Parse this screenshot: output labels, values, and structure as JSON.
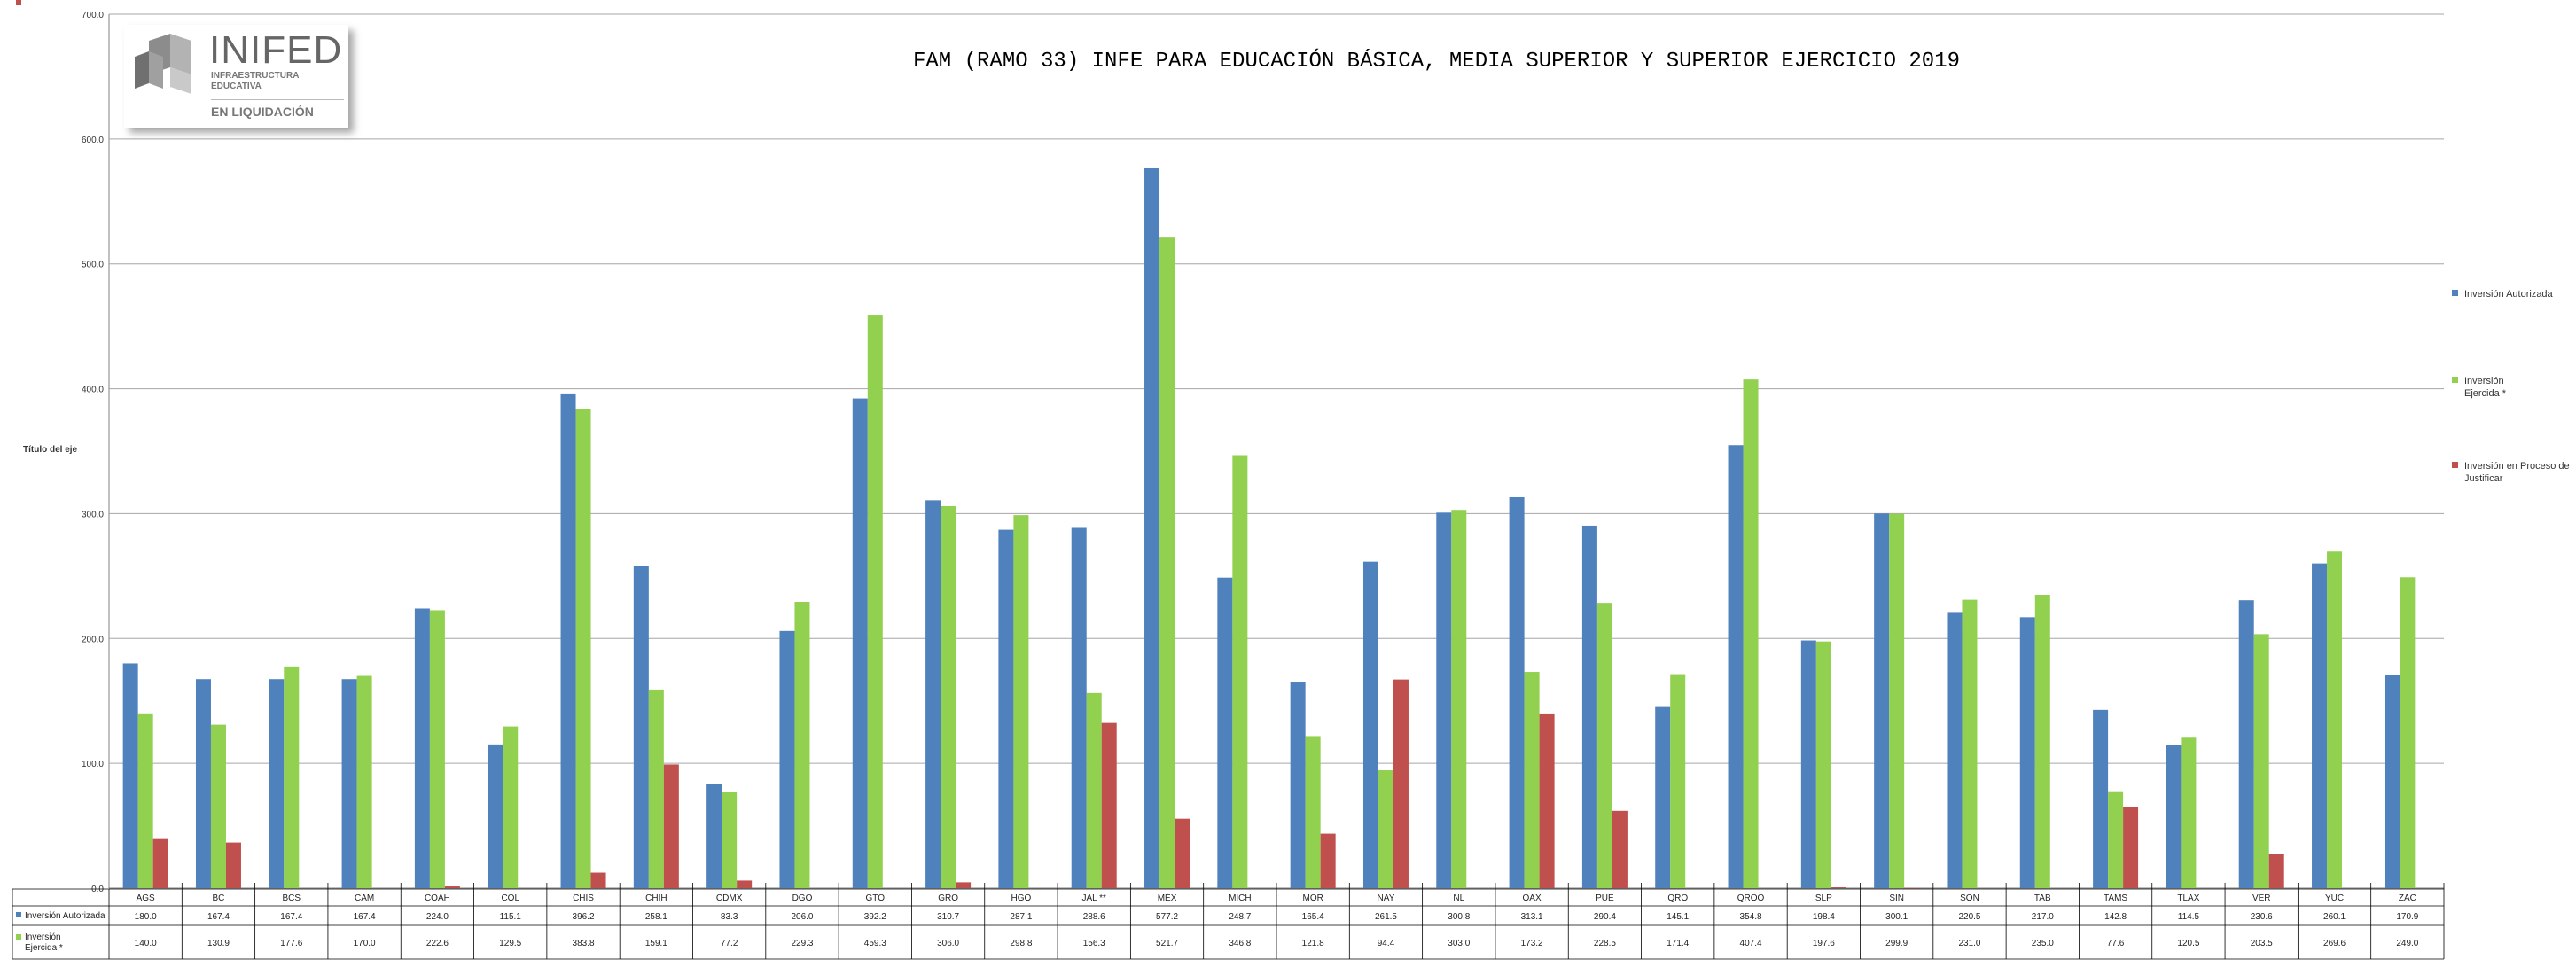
{
  "logo": {
    "name": "INIFED",
    "line1": "INFRAESTRUCTURA",
    "line2": "EDUCATIVA",
    "line3": "EN LIQUIDACIÓN"
  },
  "colors": {
    "autorizada": "#4f81bd",
    "ejercida": "#92d050",
    "proceso": "#c0504d",
    "grid": "#a6a6a6"
  },
  "chart_data": {
    "type": "bar",
    "title": "FAM (RAMO 33) INFE PARA EDUCACIÓN BÁSICA, MEDIA SUPERIOR Y SUPERIOR EJERCICIO 2019",
    "ylabel": "Título del eje",
    "ylim": [
      0,
      700
    ],
    "yticks": [
      "0.0",
      "100.0",
      "200.0",
      "300.0",
      "400.0",
      "500.0",
      "600.0",
      "700.0"
    ],
    "grid": true,
    "legend_position": "right",
    "categories": [
      "AGS",
      "BC",
      "BCS",
      "CAM",
      "COAH",
      "COL",
      "CHIS",
      "CHIH",
      "CDMX",
      "DGO",
      "GTO",
      "GRO",
      "HGO",
      "JAL **",
      "MÉX",
      "MICH",
      "MOR",
      "NAY",
      "NL",
      "OAX",
      "PUE",
      "QRO",
      "QROO",
      "SLP",
      "SIN",
      "SON",
      "TAB",
      "TAMS",
      "TLAX",
      "VER",
      "YUC",
      "ZAC"
    ],
    "series": [
      {
        "name": "Inversión Autorizada",
        "values": [
          180.0,
          167.4,
          167.4,
          167.4,
          224.0,
          115.1,
          396.2,
          258.1,
          83.3,
          206.0,
          392.2,
          310.7,
          287.1,
          288.6,
          577.2,
          248.7,
          165.4,
          261.5,
          300.8,
          313.1,
          290.4,
          145.1,
          354.8,
          198.4,
          300.1,
          220.5,
          217.0,
          142.8,
          114.5,
          230.6,
          260.1,
          170.9
        ],
        "labels": [
          "180.0",
          "167.4",
          "167.4",
          "167.4",
          "224.0",
          "115.1",
          "396.2",
          "258.1",
          "83.3",
          "206.0",
          "392.2",
          "310.7",
          "287.1",
          "288.6",
          "577.2",
          "248.7",
          "165.4",
          "261.5",
          "300.8",
          "313.1",
          "290.4",
          "145.1",
          "354.8",
          "198.4",
          "300.1",
          "220.5",
          "217.0",
          "142.8",
          "114.5",
          "230.6",
          "260.1",
          "170.9"
        ]
      },
      {
        "name": "Inversión Ejercida *",
        "values": [
          140.0,
          130.9,
          177.6,
          170.0,
          222.6,
          129.5,
          383.8,
          159.1,
          77.2,
          229.3,
          459.3,
          306.0,
          298.8,
          156.3,
          521.7,
          346.8,
          121.8,
          94.4,
          303.0,
          173.2,
          228.5,
          171.4,
          407.4,
          197.6,
          299.9,
          231.0,
          235.0,
          77.6,
          120.5,
          203.5,
          269.6,
          249.0
        ],
        "labels": [
          "140.0",
          "130.9",
          "177.6",
          "170.0",
          "222.6",
          "129.5",
          "383.8",
          "159.1",
          "77.2",
          "229.3",
          "459.3",
          "306.0",
          "298.8",
          "156.3",
          "521.7",
          "346.8",
          "121.8",
          "94.4",
          "303.0",
          "173.2",
          "228.5",
          "171.4",
          "407.4",
          "197.6",
          "299.9",
          "231.0",
          "235.0",
          "77.6",
          "120.5",
          "203.5",
          "269.6",
          "249.0"
        ]
      },
      {
        "name": "Inversión en Proceso de Justificar",
        "values": [
          40.0,
          36.5,
          0,
          0,
          1.4,
          0,
          12.4,
          99.1,
          6.1,
          0,
          0,
          4.7,
          0,
          132.3,
          55.6,
          0,
          43.6,
          167.1,
          0,
          139.9,
          61.9,
          0,
          0,
          0.7,
          0.1,
          0,
          0,
          65.2,
          0,
          27.1,
          0,
          0
        ],
        "labels": [
          "40.0",
          "36.5",
          "",
          "",
          "1.4",
          "",
          "12.4",
          "99.1",
          "6.1",
          "",
          "",
          "4.7",
          "",
          "132.3",
          "55.6",
          "",
          "43.6",
          "167.1",
          "",
          "139.9",
          "61.9",
          "",
          "",
          "0.7",
          "0.1",
          "",
          "",
          "65.2",
          "",
          "27.1",
          "",
          ""
        ]
      }
    ]
  }
}
